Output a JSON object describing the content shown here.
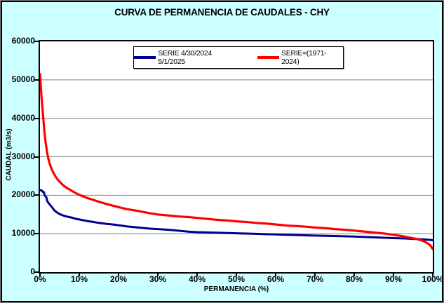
{
  "window": {
    "title": "CURVA DE PERMANENCIA DE CAUDALES - CHY"
  },
  "chart_data": {
    "type": "line",
    "title": "CURVA DE PERMANENCIA DE CAUDALES - CHY",
    "xlabel": "PERMANENCIA (%)",
    "ylabel": "CAUDAL (m3/s)",
    "xlim": [
      0,
      100
    ],
    "ylim": [
      0,
      60000
    ],
    "grid": "horizontal",
    "legend_position": "top-center-inside",
    "chart_bg": "#CCFFFF",
    "plot_bg": "#FFFFFF",
    "gridline_color": "#808080",
    "x_ticks": [
      {
        "v": 0,
        "label": "0%"
      },
      {
        "v": 10,
        "label": "10%"
      },
      {
        "v": 20,
        "label": "20%"
      },
      {
        "v": 30,
        "label": "30%"
      },
      {
        "v": 40,
        "label": "40%"
      },
      {
        "v": 50,
        "label": "50%"
      },
      {
        "v": 60,
        "label": "60%"
      },
      {
        "v": 70,
        "label": "70%"
      },
      {
        "v": 80,
        "label": "80%"
      },
      {
        "v": 90,
        "label": "90%"
      },
      {
        "v": 100,
        "label": "100%"
      }
    ],
    "y_ticks": [
      {
        "v": 0,
        "label": "0"
      },
      {
        "v": 10000,
        "label": "10000"
      },
      {
        "v": 20000,
        "label": "20000"
      },
      {
        "v": 30000,
        "label": "30000"
      },
      {
        "v": 40000,
        "label": "40000"
      },
      {
        "v": 50000,
        "label": "50000"
      },
      {
        "v": 60000,
        "label": "60000"
      }
    ],
    "series": [
      {
        "name": "SERIE 4/30/2024 5/1/2025",
        "color": "#000090",
        "width": 3,
        "x": [
          0,
          0.4,
          0.7,
          1,
          1.2,
          1.6,
          1.9,
          2.3,
          2.8,
          3.2,
          3.6,
          4,
          4.5,
          5,
          5.5,
          6,
          7,
          8,
          9,
          10,
          11,
          12,
          13.5,
          15,
          17,
          18.5,
          20,
          22,
          25,
          28,
          30,
          33,
          35,
          38,
          40,
          45,
          50,
          55,
          60,
          65,
          70,
          75,
          80,
          85,
          90,
          93,
          95,
          97,
          99,
          100
        ],
        "y": [
          21300,
          21300,
          20900,
          20800,
          19900,
          19500,
          18400,
          17800,
          17200,
          16700,
          16100,
          15800,
          15400,
          15100,
          14900,
          14700,
          14400,
          14200,
          13900,
          13700,
          13500,
          13300,
          13050,
          12800,
          12550,
          12400,
          12200,
          11900,
          11600,
          11300,
          11200,
          11000,
          10800,
          10500,
          10400,
          10250,
          10100,
          9950,
          9800,
          9650,
          9500,
          9400,
          9250,
          9050,
          8850,
          8750,
          8650,
          8550,
          8400,
          8300
        ]
      },
      {
        "name": "SERIE=(1971-2024)",
        "color": "#FF0000",
        "width": 3.2,
        "x": [
          0,
          0.2,
          0.4,
          0.6,
          0.8,
          1,
          1.2,
          1.5,
          1.8,
          2.1,
          2.5,
          3,
          3.5,
          4,
          4.5,
          5,
          6,
          7,
          8,
          9,
          10,
          11,
          12,
          13.5,
          15,
          17,
          20,
          22,
          25,
          28,
          30,
          33,
          35,
          38,
          40,
          43,
          45,
          48,
          50,
          53,
          55,
          58,
          60,
          63,
          65,
          68,
          70,
          73,
          75,
          78,
          80,
          83,
          85,
          88,
          90,
          92,
          94,
          95,
          96,
          97,
          98,
          99,
          99.5,
          100
        ],
        "y": [
          51500,
          48500,
          45500,
          43000,
          40500,
          38000,
          35800,
          33300,
          31200,
          29600,
          28100,
          26700,
          25700,
          24800,
          24100,
          23500,
          22500,
          21800,
          21200,
          20600,
          20100,
          19700,
          19300,
          18800,
          18300,
          17700,
          16900,
          16400,
          15900,
          15300,
          15000,
          14700,
          14500,
          14300,
          14100,
          13800,
          13600,
          13400,
          13200,
          13000,
          12800,
          12600,
          12400,
          12100,
          12000,
          11800,
          11600,
          11400,
          11200,
          11000,
          10800,
          10500,
          10300,
          10000,
          9700,
          9400,
          9000,
          8800,
          8600,
          8300,
          7900,
          7300,
          6800,
          6000
        ]
      }
    ]
  }
}
